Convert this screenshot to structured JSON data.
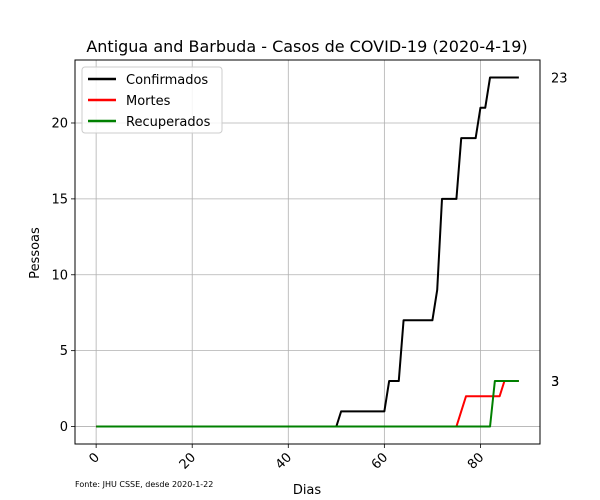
{
  "chart_data": {
    "type": "line",
    "title": "Antigua and Barbuda - Casos de COVID-19 (2020-4-19)",
    "xlabel": "Dias",
    "ylabel": "Pessoas",
    "xlim": [
      -4.4,
      92.4
    ],
    "ylim": [
      -1.15,
      24.15
    ],
    "xticks": [
      0,
      20,
      40,
      60,
      80
    ],
    "yticks": [
      0,
      5,
      10,
      15,
      20
    ],
    "grid": true,
    "legend_position": "upper left",
    "source": "Fonte: JHU CSSE, desde 2020-1-22",
    "series": [
      {
        "name": "Confirmados",
        "color": "#000000",
        "points": [
          [
            0,
            0
          ],
          [
            50,
            0
          ],
          [
            51,
            1
          ],
          [
            60,
            1
          ],
          [
            61,
            3
          ],
          [
            63,
            3
          ],
          [
            64,
            7
          ],
          [
            70,
            7
          ],
          [
            71,
            9
          ],
          [
            72,
            15
          ],
          [
            75,
            15
          ],
          [
            76,
            19
          ],
          [
            79,
            19
          ],
          [
            80,
            21
          ],
          [
            81,
            21
          ],
          [
            82,
            23
          ],
          [
            88,
            23
          ]
        ],
        "end_label": "23"
      },
      {
        "name": "Mortes",
        "color": "#ff0000",
        "points": [
          [
            0,
            0
          ],
          [
            75,
            0
          ],
          [
            77,
            2
          ],
          [
            84,
            2
          ],
          [
            85,
            3
          ],
          [
            88,
            3
          ]
        ],
        "end_label": "3"
      },
      {
        "name": "Recuperados",
        "color": "#008000",
        "points": [
          [
            0,
            0
          ],
          [
            82,
            0
          ],
          [
            83,
            3
          ],
          [
            88,
            3
          ]
        ],
        "end_label": "3"
      }
    ]
  }
}
